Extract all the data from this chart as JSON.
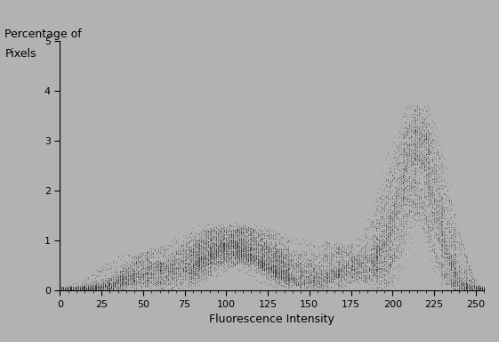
{
  "xlabel": "Fluorescence Intensity",
  "ylabel_line1": "Percentage of",
  "ylabel_line2": "Pixels",
  "xlim": [
    0,
    255
  ],
  "ylim": [
    0,
    5
  ],
  "xticks_major": [
    0,
    25,
    50,
    75,
    100,
    125,
    150,
    175,
    200,
    225,
    250
  ],
  "yticks": [
    0,
    1,
    2,
    3,
    4,
    5
  ],
  "background_color": "#b2b2b2",
  "dot_color": "#111111",
  "dot_size": 0.5,
  "n_curves": 30,
  "seed": 42,
  "figsize": [
    5.61,
    3.84
  ],
  "dpi": 100
}
